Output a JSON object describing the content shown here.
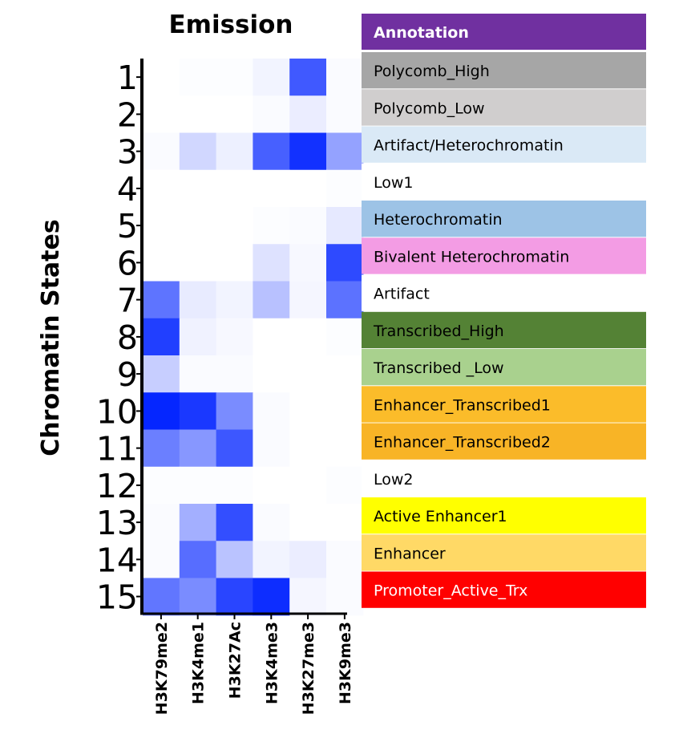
{
  "chart_data": {
    "type": "heatmap",
    "title": "Emission",
    "ylabel": "Chromatin States",
    "xlabel": "",
    "x": [
      "H3K79me2",
      "H3K4me1",
      "H3K27Ac",
      "H3K4me3",
      "H3K27me3",
      "H3K9me3"
    ],
    "y": [
      "1",
      "2",
      "3",
      "4",
      "5",
      "6",
      "7",
      "8",
      "9",
      "10",
      "11",
      "12",
      "13",
      "14",
      "15"
    ],
    "values": [
      [
        0.0,
        0.01,
        0.01,
        0.05,
        0.75,
        0.02
      ],
      [
        0.0,
        0.0,
        0.0,
        0.02,
        0.08,
        0.02
      ],
      [
        0.02,
        0.18,
        0.07,
        0.72,
        0.93,
        0.42
      ],
      [
        0.0,
        0.0,
        0.0,
        0.0,
        0.0,
        0.01
      ],
      [
        0.0,
        0.0,
        0.0,
        0.01,
        0.02,
        0.1
      ],
      [
        0.0,
        0.0,
        0.0,
        0.13,
        0.03,
        0.82
      ],
      [
        0.63,
        0.09,
        0.05,
        0.28,
        0.04,
        0.64
      ],
      [
        0.87,
        0.06,
        0.03,
        0.0,
        0.0,
        0.01
      ],
      [
        0.22,
        0.02,
        0.02,
        0.0,
        0.0,
        0.0
      ],
      [
        0.98,
        0.9,
        0.52,
        0.02,
        0.0,
        0.0
      ],
      [
        0.58,
        0.47,
        0.76,
        0.02,
        0.0,
        0.0
      ],
      [
        0.01,
        0.01,
        0.01,
        0.0,
        0.0,
        0.01
      ],
      [
        0.02,
        0.36,
        0.8,
        0.02,
        0.0,
        0.0
      ],
      [
        0.02,
        0.66,
        0.27,
        0.05,
        0.08,
        0.02
      ],
      [
        0.62,
        0.52,
        0.84,
        0.95,
        0.04,
        0.02
      ]
    ],
    "color_scale": {
      "low": "#ffffff",
      "high": "#0022ff"
    },
    "annotation": {
      "header": "Annotation",
      "header_color": "#7030a0",
      "header_text_color": "#ffffff",
      "rows": [
        {
          "label": "Polycomb_High",
          "color": "#a6a6a6"
        },
        {
          "label": "Polycomb_Low",
          "color": "#d0cece"
        },
        {
          "label": "Artifact/Heterochromatin",
          "color": "#dae9f6"
        },
        {
          "label": "Low1",
          "color": "#ffffff"
        },
        {
          "label": "Heterochromatin",
          "color": "#9dc3e6"
        },
        {
          "label": "Bivalent Heterochromatin",
          "color": "#f39ce4"
        },
        {
          "label": "Artifact",
          "color": "#ffffff"
        },
        {
          "label": "Transcribed_High",
          "color": "#548235"
        },
        {
          "label": "Transcribed _Low",
          "color": "#a9d18e"
        },
        {
          "label": "Enhancer_Transcribed1",
          "color": "#fbbc2a"
        },
        {
          "label": "Enhancer_Transcribed2",
          "color": "#f8b426"
        },
        {
          "label": "Low2",
          "color": "#ffffff"
        },
        {
          "label": "Active Enhancer1",
          "color": "#ffff00"
        },
        {
          "label": "Enhancer",
          "color": "#ffd966"
        },
        {
          "label": "Promoter_Active_Trx",
          "color": "#ff0000"
        }
      ]
    }
  }
}
